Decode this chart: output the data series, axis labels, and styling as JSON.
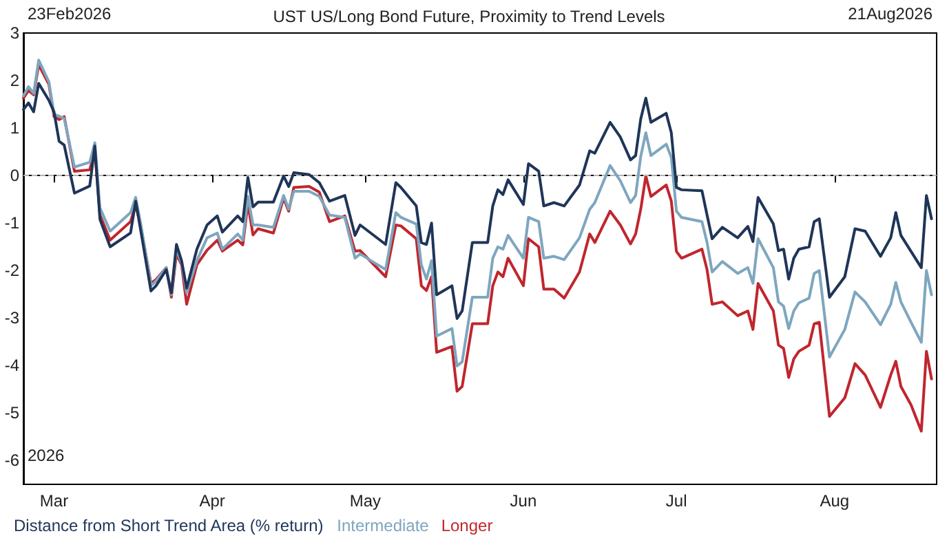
{
  "chart_data": {
    "type": "line",
    "title": "UST US/Long Bond Future, Proximity to Trend Levels",
    "annotations": [
      "23Feb2026",
      "21Aug2026",
      "2026"
    ],
    "x": [
      "2026-02-23",
      "2026-02-24",
      "2026-02-25",
      "2026-02-26",
      "2026-02-28",
      "2026-03-01",
      "2026-03-02",
      "2026-03-03",
      "2026-03-05",
      "2026-03-08",
      "2026-03-09",
      "2026-03-10",
      "2026-03-12",
      "2026-03-16",
      "2026-03-17",
      "2026-03-18",
      "2026-03-20",
      "2026-03-21",
      "2026-03-23",
      "2026-03-24",
      "2026-03-25",
      "2026-03-26",
      "2026-03-27",
      "2026-03-29",
      "2026-03-31",
      "2026-04-02",
      "2026-04-03",
      "2026-04-06",
      "2026-04-07",
      "2026-04-08",
      "2026-04-09",
      "2026-04-10",
      "2026-04-13",
      "2026-04-15",
      "2026-04-16",
      "2026-04-17",
      "2026-04-20",
      "2026-04-22",
      "2026-04-24",
      "2026-04-27",
      "2026-04-29",
      "2026-04-30",
      "2026-05-05",
      "2026-05-07",
      "2026-05-08",
      "2026-05-11",
      "2026-05-12",
      "2026-05-13",
      "2026-05-14",
      "2026-05-15",
      "2026-05-18",
      "2026-05-19",
      "2026-05-20",
      "2026-05-22",
      "2026-05-25",
      "2026-05-26",
      "2026-05-27",
      "2026-05-28",
      "2026-05-29",
      "2026-06-01",
      "2026-06-02",
      "2026-06-04",
      "2026-06-05",
      "2026-06-07",
      "2026-06-09",
      "2026-06-12",
      "2026-06-14",
      "2026-06-15",
      "2026-06-18",
      "2026-06-20",
      "2026-06-22",
      "2026-06-23",
      "2026-06-24",
      "2026-06-25",
      "2026-06-26",
      "2026-06-29",
      "2026-06-30",
      "2026-07-01",
      "2026-07-02",
      "2026-07-06",
      "2026-07-07",
      "2026-07-08",
      "2026-07-10",
      "2026-07-13",
      "2026-07-15",
      "2026-07-16",
      "2026-07-17",
      "2026-07-20",
      "2026-07-21",
      "2026-07-22",
      "2026-07-23",
      "2026-07-24",
      "2026-07-25",
      "2026-07-27",
      "2026-07-28",
      "2026-07-29",
      "2026-07-31",
      "2026-08-03",
      "2026-08-05",
      "2026-08-07",
      "2026-08-10",
      "2026-08-12",
      "2026-08-13",
      "2026-08-14",
      "2026-08-16",
      "2026-08-18",
      "2026-08-19",
      "2026-08-20"
    ],
    "series": [
      {
        "name": "Distance from Short Trend Area (% return)",
        "color": "#1f3558",
        "values": [
          1.39,
          1.53,
          1.34,
          1.94,
          1.58,
          1.34,
          0.72,
          0.64,
          -0.37,
          -0.22,
          0.62,
          -0.92,
          -1.5,
          -1.21,
          -0.54,
          -1.16,
          -2.43,
          -2.32,
          -1.98,
          -2.47,
          -1.45,
          -1.79,
          -2.37,
          -1.55,
          -1.04,
          -0.85,
          -1.19,
          -0.85,
          -0.97,
          -0.04,
          -0.66,
          -0.56,
          -0.56,
          -0.01,
          -0.23,
          0.06,
          0.02,
          -0.15,
          -0.54,
          -0.42,
          -1.26,
          -1.04,
          -1.45,
          -0.15,
          -0.25,
          -0.64,
          -1.41,
          -1.45,
          -1.0,
          -2.51,
          -2.32,
          -3.01,
          -2.85,
          -1.41,
          -1.41,
          -0.64,
          -0.3,
          -0.4,
          -0.09,
          -0.61,
          0.25,
          0.09,
          -0.64,
          -0.57,
          -0.64,
          -0.2,
          0.52,
          0.47,
          1.12,
          0.81,
          0.33,
          0.42,
          1.19,
          1.63,
          1.12,
          1.31,
          0.9,
          -0.25,
          -0.3,
          -0.32,
          -0.83,
          -1.33,
          -1.09,
          -1.31,
          -1.07,
          -1.39,
          -0.46,
          -1.02,
          -1.58,
          -1.55,
          -2.18,
          -1.74,
          -1.55,
          -1.5,
          -0.97,
          -0.91,
          -2.56,
          -2.13,
          -1.12,
          -1.17,
          -1.7,
          -1.31,
          -0.78,
          -1.26,
          -1.6,
          -1.94,
          -0.42,
          -0.91
        ]
      },
      {
        "name": "Intermediate",
        "color": "#7ea6bf",
        "values": [
          1.68,
          1.87,
          1.73,
          2.43,
          1.97,
          1.29,
          1.25,
          1.2,
          0.18,
          0.28,
          0.69,
          -0.68,
          -1.17,
          -0.78,
          -0.46,
          -1.02,
          -2.32,
          -2.22,
          -1.94,
          -2.51,
          -1.55,
          -1.84,
          -2.47,
          -1.79,
          -1.31,
          -1.21,
          -1.55,
          -1.23,
          -1.36,
          -0.44,
          -1.04,
          -1.04,
          -1.09,
          -0.42,
          -0.71,
          -0.33,
          -0.33,
          -0.44,
          -0.83,
          -0.88,
          -1.74,
          -1.65,
          -1.98,
          -0.78,
          -0.88,
          -1.02,
          -1.88,
          -2.18,
          -1.79,
          -3.38,
          -3.22,
          -4.01,
          -3.92,
          -2.56,
          -2.56,
          -1.74,
          -1.5,
          -1.55,
          -1.26,
          -1.74,
          -0.88,
          -0.97,
          -1.74,
          -1.7,
          -1.77,
          -1.31,
          -0.71,
          -0.57,
          0.21,
          -0.11,
          -0.57,
          -0.42,
          0.4,
          0.9,
          0.42,
          0.66,
          0.38,
          -0.75,
          -0.88,
          -0.97,
          -1.41,
          -2.03,
          -1.81,
          -2.06,
          -1.94,
          -2.27,
          -1.33,
          -1.94,
          -2.66,
          -2.75,
          -3.22,
          -2.85,
          -2.68,
          -2.58,
          -2.06,
          -2.0,
          -3.82,
          -3.24,
          -2.45,
          -2.66,
          -3.14,
          -2.71,
          -2.25,
          -2.66,
          -3.09,
          -3.51,
          -2.0,
          -2.51
        ]
      },
      {
        "name": "Longer",
        "color": "#c0262d",
        "values": [
          1.63,
          1.79,
          1.7,
          2.33,
          1.92,
          1.24,
          1.18,
          1.24,
          0.09,
          0.12,
          0.52,
          -0.83,
          -1.36,
          -0.97,
          -0.62,
          -1.06,
          -2.27,
          -2.19,
          -1.94,
          -2.56,
          -1.65,
          -1.88,
          -2.71,
          -1.88,
          -1.57,
          -1.36,
          -1.59,
          -1.36,
          -1.46,
          -0.59,
          -1.25,
          -1.12,
          -1.21,
          -0.48,
          -0.75,
          -0.25,
          -0.23,
          -0.35,
          -0.97,
          -0.85,
          -1.59,
          -1.58,
          -2.13,
          -1.04,
          -1.06,
          -1.33,
          -2.32,
          -2.42,
          -2.13,
          -3.72,
          -3.6,
          -4.54,
          -4.44,
          -3.12,
          -3.12,
          -2.32,
          -2.03,
          -2.13,
          -1.74,
          -2.32,
          -1.33,
          -1.5,
          -2.39,
          -2.39,
          -2.58,
          -2.03,
          -1.23,
          -1.41,
          -0.75,
          -1.04,
          -1.44,
          -1.23,
          -0.71,
          -0.01,
          -0.44,
          -0.2,
          -0.54,
          -1.6,
          -1.74,
          -1.55,
          -1.98,
          -2.71,
          -2.66,
          -2.95,
          -2.85,
          -3.24,
          -2.27,
          -2.85,
          -3.57,
          -3.64,
          -4.25,
          -3.86,
          -3.7,
          -3.57,
          -3.12,
          -3.09,
          -5.07,
          -4.68,
          -3.96,
          -4.2,
          -4.88,
          -4.2,
          -3.91,
          -4.44,
          -4.83,
          -5.38,
          -3.7,
          -4.28
        ]
      }
    ],
    "xlim": [
      "2026-02-23",
      "2026-08-21"
    ],
    "xticks": [
      {
        "value": "2026-03-01",
        "label": "Mar"
      },
      {
        "value": "2026-04-01",
        "label": "Apr"
      },
      {
        "value": "2026-05-01",
        "label": "May"
      },
      {
        "value": "2026-06-01",
        "label": "Jun"
      },
      {
        "value": "2026-07-01",
        "label": "Jul"
      },
      {
        "value": "2026-08-01",
        "label": "Aug"
      }
    ],
    "ylim": [
      -6.5,
      3
    ],
    "yticks": [
      -6,
      -5,
      -4,
      -3,
      -2,
      -1,
      0,
      1,
      2,
      3
    ],
    "ref_lines": [
      {
        "axis": "y",
        "value": 0,
        "color": "#b4b4b4",
        "line_style": "dashed"
      }
    ],
    "legend": "bottom left",
    "marker": "none",
    "line_style": "solid"
  }
}
